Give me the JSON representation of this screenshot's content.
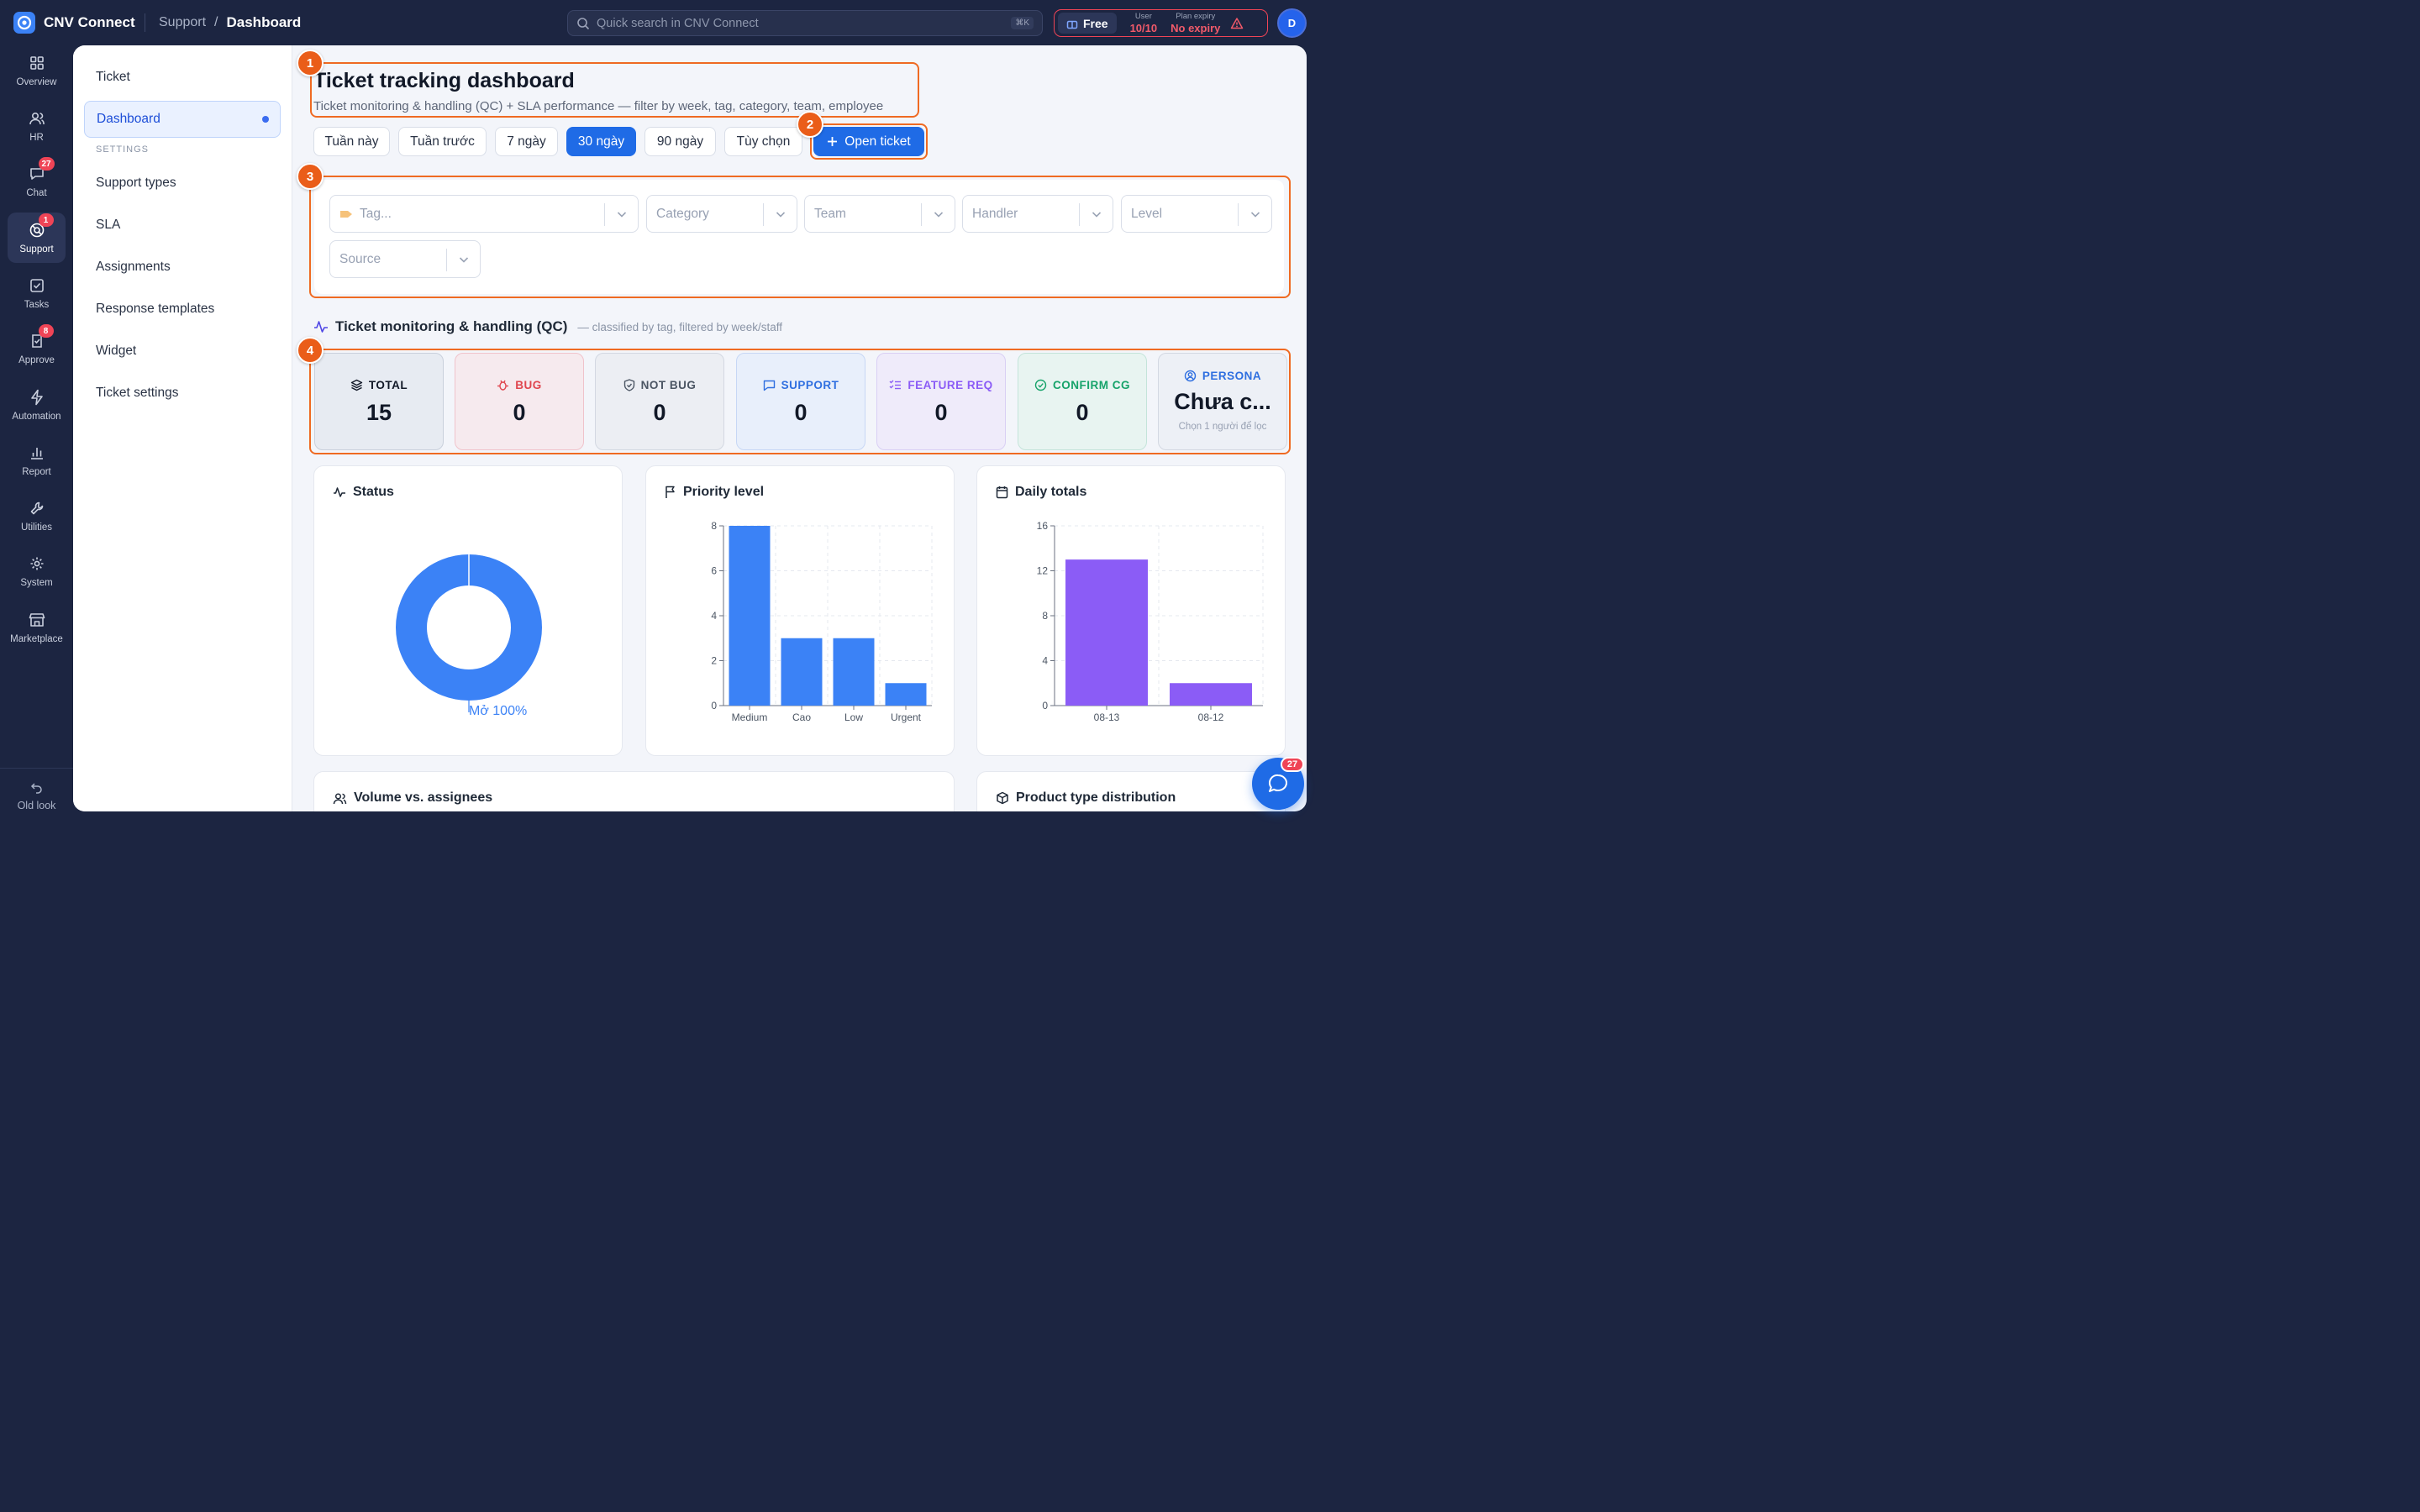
{
  "app": {
    "name": "CNV Connect"
  },
  "breadcrumb": {
    "parent": "Support",
    "current": "Dashboard"
  },
  "search": {
    "placeholder": "Quick search in CNV Connect",
    "shortcut": "⌘K"
  },
  "plan": {
    "tier": "Free",
    "user_label": "User",
    "user_value": "10/10",
    "expiry_label": "Plan expiry",
    "expiry_value": "No expiry"
  },
  "user": {
    "initial": "D"
  },
  "rail": {
    "items": [
      {
        "label": "Overview",
        "icon": "grid-icon"
      },
      {
        "label": "HR",
        "icon": "users-icon"
      },
      {
        "label": "Chat",
        "icon": "chat-icon",
        "badge": "27"
      },
      {
        "label": "Support",
        "icon": "support-icon",
        "badge": "1",
        "active": true
      },
      {
        "label": "Tasks",
        "icon": "check-square-icon"
      },
      {
        "label": "Approve",
        "icon": "approve-icon",
        "badge": "8"
      },
      {
        "label": "Automation",
        "icon": "bolt-icon"
      },
      {
        "label": "Report",
        "icon": "bar-chart-icon"
      },
      {
        "label": "Utilities",
        "icon": "wrench-icon"
      },
      {
        "label": "System",
        "icon": "gear-icon"
      },
      {
        "label": "Marketplace",
        "icon": "store-icon"
      }
    ],
    "bottom": "Old look"
  },
  "subnav": {
    "items": [
      "Ticket",
      "Dashboard"
    ],
    "section": "SETTINGS",
    "settings": [
      "Support types",
      "SLA",
      "Assignments",
      "Response templates",
      "Widget",
      "Ticket settings"
    ]
  },
  "page": {
    "title": "Ticket tracking dashboard",
    "subtitle": "Ticket monitoring & handling (QC) + SLA performance — filter by week, tag, category, team, employee"
  },
  "periods": [
    "Tuần này",
    "Tuần trước",
    "7 ngày",
    "30 ngày",
    "90 ngày",
    "Tùy chọn"
  ],
  "active_period": "30 ngày",
  "open_ticket": "Open ticket",
  "callouts": [
    "1",
    "2",
    "3",
    "4"
  ],
  "filters": {
    "tag": "Tag...",
    "category": "Category",
    "team": "Team",
    "handler": "Handler",
    "level": "Level",
    "source": "Source"
  },
  "qc": {
    "title": "Ticket monitoring & handling (QC)",
    "subtitle": "— classified by tag, filtered by week/staff"
  },
  "kpis": [
    {
      "label": "TOTAL",
      "value": "15",
      "color": "#111827"
    },
    {
      "label": "BUG",
      "value": "0",
      "color": "#e0464f"
    },
    {
      "label": "NOT BUG",
      "value": "0",
      "color": "#4b5563"
    },
    {
      "label": "SUPPORT",
      "value": "0",
      "color": "#2f6fe0"
    },
    {
      "label": "FEATURE REQ",
      "value": "0",
      "color": "#8b5cf6"
    },
    {
      "label": "CONFIRM CG",
      "value": "0",
      "color": "#16a36a"
    },
    {
      "label": "PERSONA",
      "value": "Chưa c...",
      "hint": "Chọn 1 người để lọc",
      "color": "#2f6fe0"
    }
  ],
  "panels": {
    "status": "Status",
    "priority": "Priority level",
    "daily": "Daily totals",
    "volume": "Volume vs. assignees",
    "product": "Product type distribution"
  },
  "chart_data": [
    {
      "type": "pie",
      "title": "Status",
      "categories": [
        "Mở"
      ],
      "values": [
        100
      ],
      "labels": [
        "Mở 100%"
      ],
      "colors": [
        "#3b82f6"
      ]
    },
    {
      "type": "bar",
      "title": "Priority level",
      "categories": [
        "Medium",
        "Cao",
        "Low",
        "Urgent"
      ],
      "values": [
        8,
        3,
        3,
        1
      ],
      "yticks": [
        0,
        2,
        4,
        6,
        8
      ],
      "ylim": [
        0,
        8
      ],
      "grid": true,
      "colors": [
        "#3b82f6"
      ]
    },
    {
      "type": "bar",
      "title": "Daily totals",
      "categories": [
        "08-13",
        "08-12"
      ],
      "values": [
        13,
        2
      ],
      "yticks": [
        0,
        4,
        8,
        12,
        16
      ],
      "ylim": [
        0,
        16
      ],
      "grid": true,
      "colors": [
        "#8b5cf6"
      ]
    }
  ],
  "chat_badge": "27"
}
